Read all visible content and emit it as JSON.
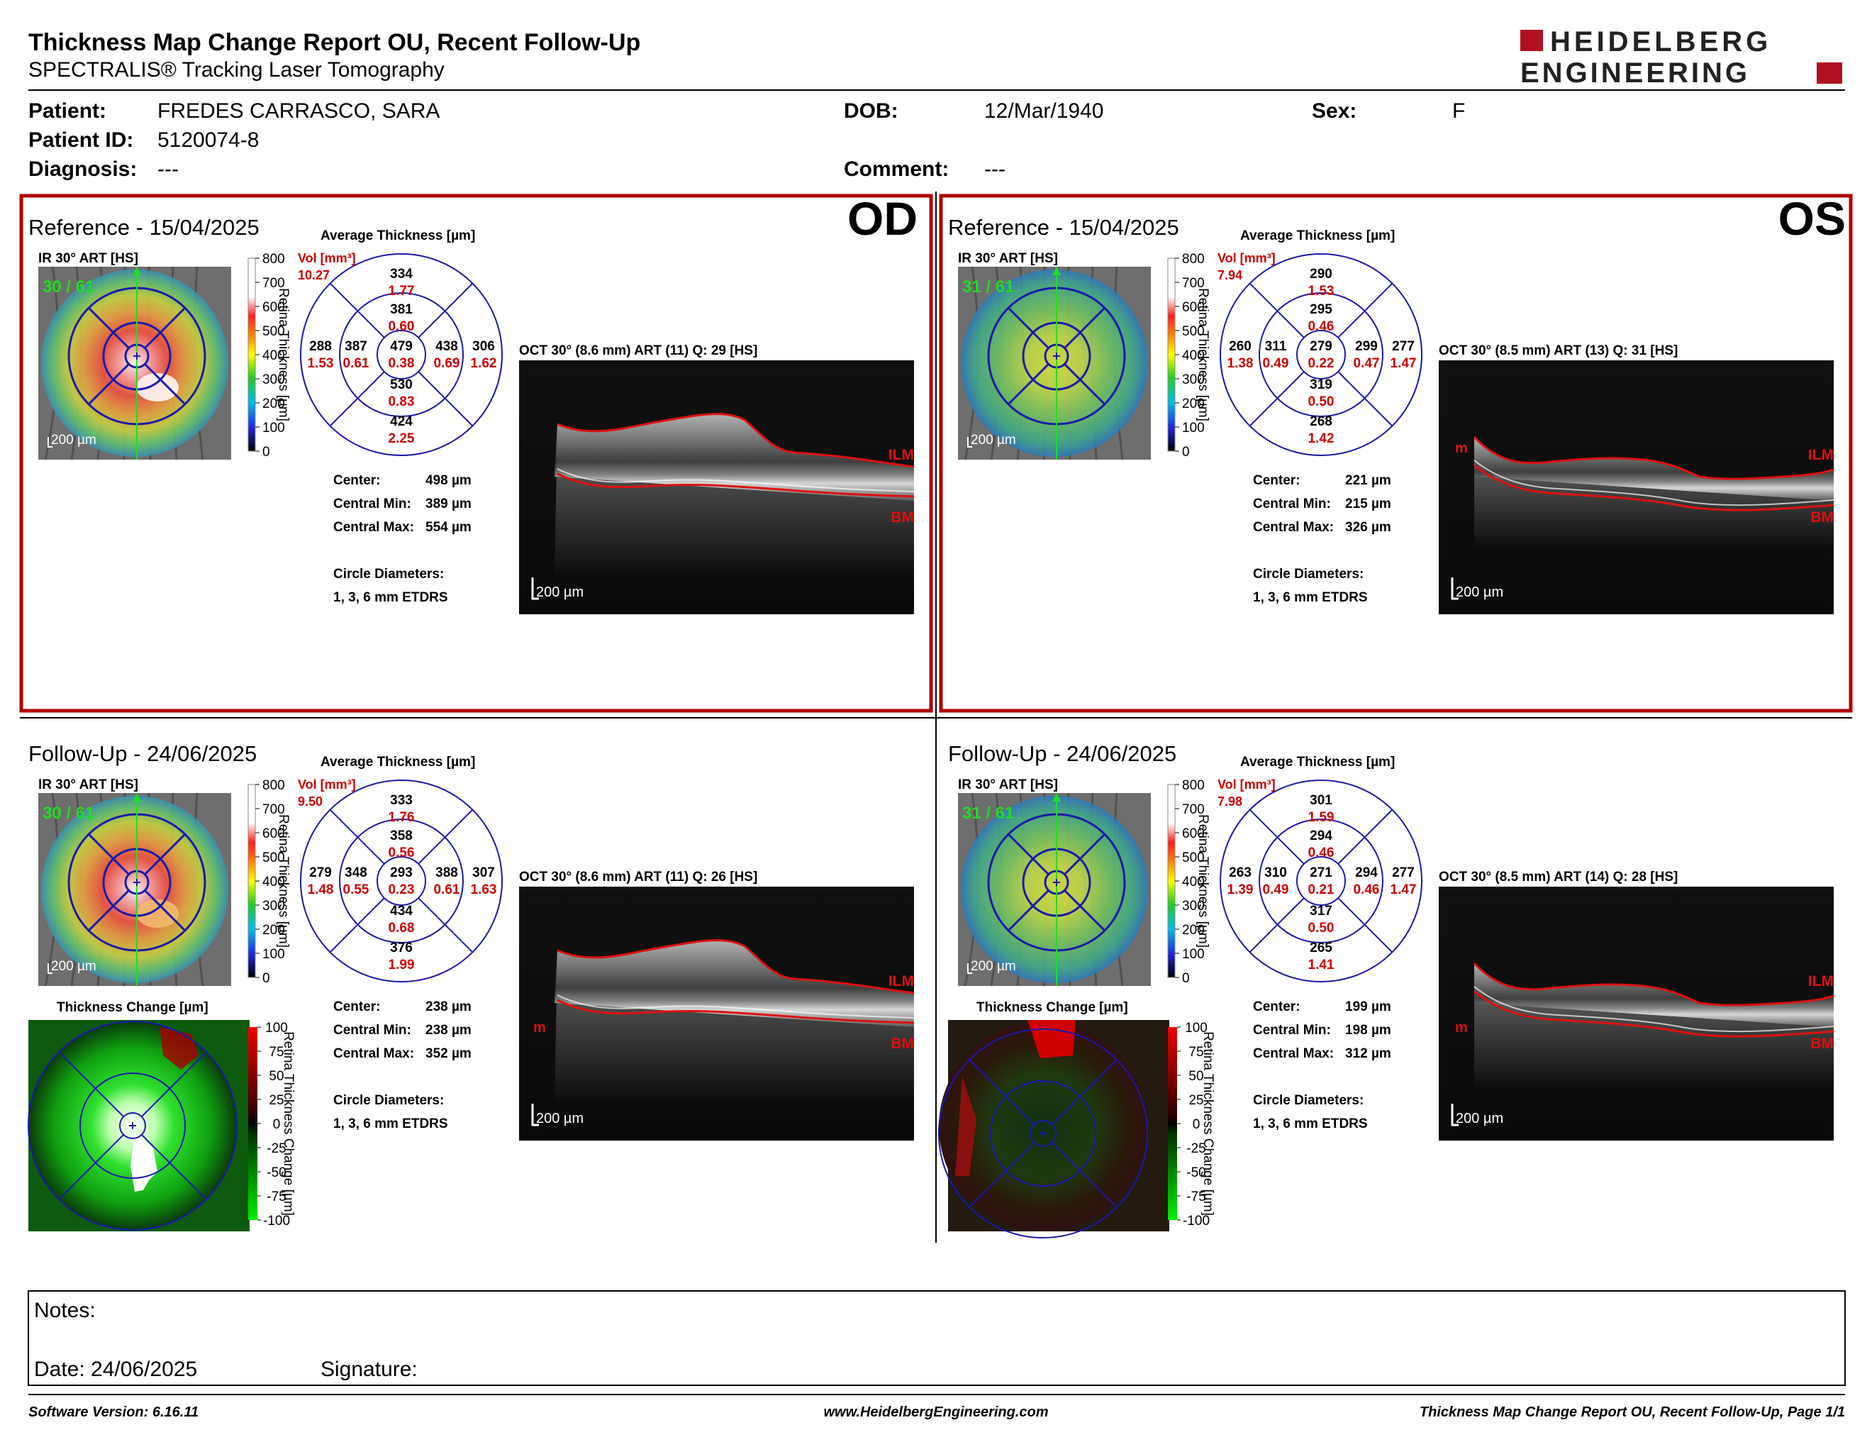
{
  "header": {
    "title": "Thickness Map Change Report OU, Recent Follow-Up",
    "subtitle": "SPECTRALIS® Tracking Laser Tomography",
    "logo_line1": "HEIDELBERG",
    "logo_line2": "ENGINEERING"
  },
  "patient": {
    "name_label": "Patient:",
    "name": "FREDES CARRASCO, SARA",
    "id_label": "Patient ID:",
    "id": "5120074-8",
    "diagnosis_label": "Diagnosis:",
    "diagnosis": "---",
    "dob_label": "DOB:",
    "dob": "12/Mar/1940",
    "sex_label": "Sex:",
    "sex": "F",
    "comment_label": "Comment:",
    "comment": "---"
  },
  "labels": {
    "avg_thickness": "Average Thickness [µm]",
    "ir": "IR 30° ART [HS]",
    "vol": "Vol [mm³]",
    "scale_200": "200 µm",
    "retina_thickness": "Retina Thickness [µm]",
    "retina_thickness_change": "Retina Thickness Change [µm]",
    "thickness_change": "Thickness Change [µm]",
    "center": "Center:",
    "central_min": "Central Min:",
    "central_max": "Central Max:",
    "circle_diameters": "Circle Diameters:",
    "etdrs": "1, 3, 6 mm ETDRS",
    "ilm": "ILM",
    "bm": "BM",
    "m": "m",
    "thickness_scale": [
      "800",
      "700",
      "600",
      "500",
      "400",
      "300",
      "200",
      "100",
      "0"
    ],
    "change_scale": [
      "100",
      "75",
      "50",
      "25",
      "0",
      "-25",
      "-50",
      "-75",
      "-100"
    ]
  },
  "colors": {
    "frame_red": "#b00000",
    "grid_blue": "#1a1aa8",
    "value_red": "#cc0000"
  },
  "panels": [
    {
      "eye": "OD",
      "type": "Reference",
      "date_line": "Reference - 15/04/2025",
      "frames": "30 / 61",
      "vol_total": "10.27",
      "oct_label": "OCT 30° (8.6 mm) ART (11) Q: 29 [HS]",
      "sectors": {
        "center": [
          "479",
          "0.38"
        ],
        "inner_s": [
          "381",
          "0.60"
        ],
        "inner_n": [
          "438",
          "0.69"
        ],
        "inner_i": [
          "530",
          "0.83"
        ],
        "inner_t": [
          "387",
          "0.61"
        ],
        "outer_s": [
          "334",
          "1.77"
        ],
        "outer_n": [
          "306",
          "1.62"
        ],
        "outer_i": [
          "424",
          "2.25"
        ],
        "outer_t": [
          "288",
          "1.53"
        ]
      },
      "stats": {
        "center": "498 µm",
        "central_min": "389 µm",
        "central_max": "554 µm"
      }
    },
    {
      "eye": "OS",
      "type": "Reference",
      "date_line": "Reference - 15/04/2025",
      "frames": "31 / 61",
      "vol_total": "7.94",
      "oct_label": "OCT 30° (8.5 mm) ART (13) Q: 31 [HS]",
      "sectors": {
        "center": [
          "279",
          "0.22"
        ],
        "inner_s": [
          "295",
          "0.46"
        ],
        "inner_n": [
          "299",
          "0.47"
        ],
        "inner_i": [
          "319",
          "0.50"
        ],
        "inner_t": [
          "311",
          "0.49"
        ],
        "outer_s": [
          "290",
          "1.53"
        ],
        "outer_n": [
          "277",
          "1.47"
        ],
        "outer_i": [
          "268",
          "1.42"
        ],
        "outer_t": [
          "260",
          "1.38"
        ]
      },
      "stats": {
        "center": "221 µm",
        "central_min": "215 µm",
        "central_max": "326 µm"
      }
    },
    {
      "eye": "OD",
      "type": "Follow-Up",
      "date_line": "Follow-Up - 24/06/2025",
      "frames": "30 / 61",
      "vol_total": "9.50",
      "oct_label": "OCT 30° (8.6 mm) ART (11) Q: 26 [HS]",
      "sectors": {
        "center": [
          "293",
          "0.23"
        ],
        "inner_s": [
          "358",
          "0.56"
        ],
        "inner_n": [
          "388",
          "0.61"
        ],
        "inner_i": [
          "434",
          "0.68"
        ],
        "inner_t": [
          "348",
          "0.55"
        ],
        "outer_s": [
          "333",
          "1.76"
        ],
        "outer_n": [
          "307",
          "1.63"
        ],
        "outer_i": [
          "376",
          "1.99"
        ],
        "outer_t": [
          "279",
          "1.48"
        ]
      },
      "stats": {
        "center": "238 µm",
        "central_min": "238 µm",
        "central_max": "352 µm"
      }
    },
    {
      "eye": "OS",
      "type": "Follow-Up",
      "date_line": "Follow-Up - 24/06/2025",
      "frames": "31 / 61",
      "vol_total": "7.98",
      "oct_label": "OCT 30° (8.5 mm) ART (14) Q: 28 [HS]",
      "sectors": {
        "center": [
          "271",
          "0.21"
        ],
        "inner_s": [
          "294",
          "0.46"
        ],
        "inner_n": [
          "294",
          "0.46"
        ],
        "inner_i": [
          "317",
          "0.50"
        ],
        "inner_t": [
          "310",
          "0.49"
        ],
        "outer_s": [
          "301",
          "1.59"
        ],
        "outer_n": [
          "277",
          "1.47"
        ],
        "outer_i": [
          "265",
          "1.41"
        ],
        "outer_t": [
          "263",
          "1.39"
        ]
      },
      "stats": {
        "center": "199 µm",
        "central_min": "198 µm",
        "central_max": "312 µm"
      }
    }
  ],
  "notes": {
    "label": "Notes:",
    "date": "Date: 24/06/2025",
    "signature": "Signature:"
  },
  "footer": {
    "software": "Software Version: 6.16.11",
    "website": "www.HeidelbergEngineering.com",
    "page": "Thickness Map Change Report OU, Recent Follow-Up, Page 1/1"
  }
}
